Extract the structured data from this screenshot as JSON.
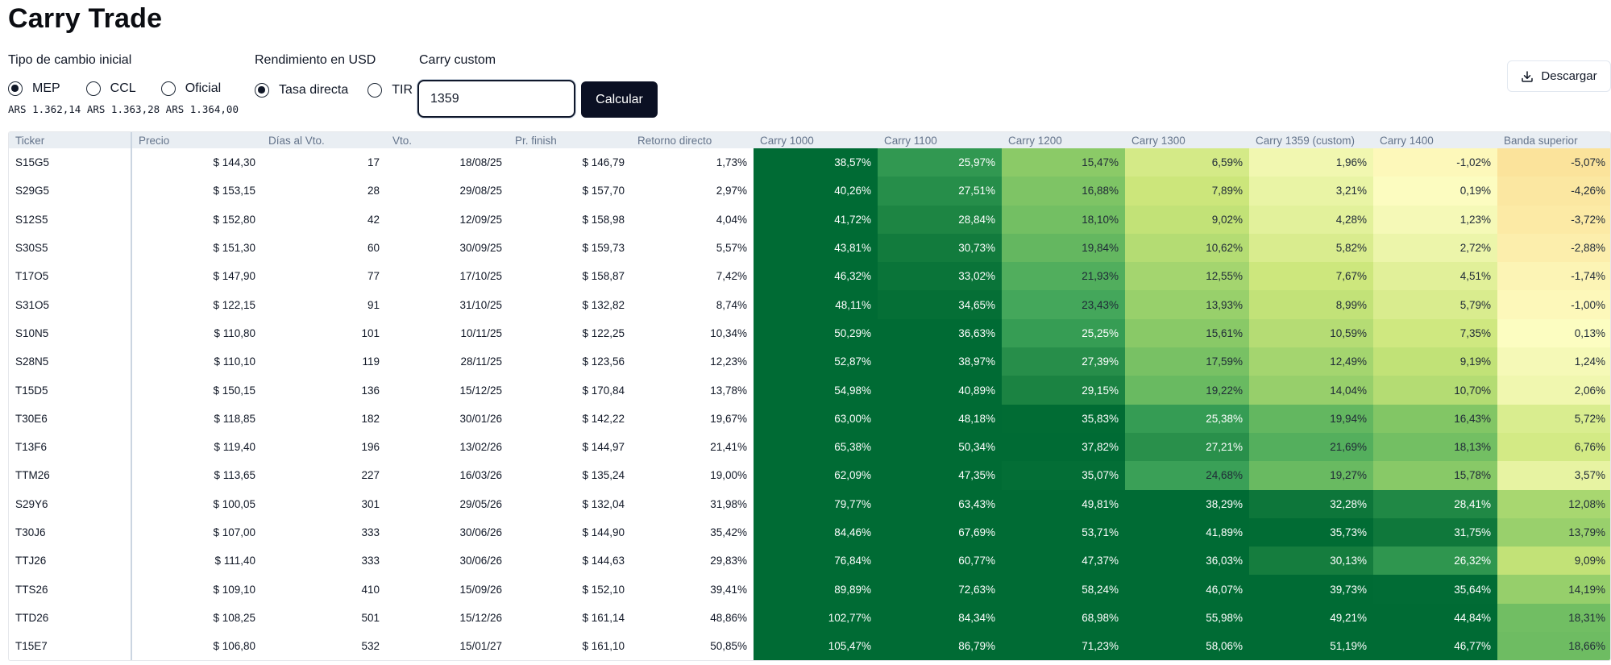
{
  "title": "Carry Trade",
  "fx": {
    "label": "Tipo de cambio inicial",
    "options": [
      "MEP",
      "CCL",
      "Oficial"
    ],
    "selected": 0,
    "rates_text": "ARS 1.362,14 ARS 1.363,28 ARS 1.364,00"
  },
  "yield": {
    "label": "Rendimiento en USD",
    "options": [
      "Tasa directa",
      "TIR"
    ],
    "selected": 0
  },
  "carry": {
    "label": "Carry custom",
    "value": "1359",
    "button_label": "Calcular"
  },
  "download_label": "Descargar",
  "colors": {
    "scale_low": "#fbe79b",
    "scale_mid": "#cbe67a",
    "scale_high": "#006b34",
    "button_dark": "#0b1023"
  },
  "table": {
    "headers": [
      "Ticker",
      "Precio",
      "Días al Vto.",
      "Vto.",
      "Pr. finish",
      "Retorno directo",
      "Carry 1000",
      "Carry 1100",
      "Carry 1200",
      "Carry 1300",
      "Carry 1359 (custom)",
      "Carry 1400",
      "Banda superior"
    ],
    "rows": [
      [
        "S15G5",
        "$ 144,30",
        "17",
        "18/08/25",
        "$ 146,79",
        "1,73%",
        "38,57%",
        "25,97%",
        "15,47%",
        "6,59%",
        "1,96%",
        "-1,02%",
        "-5,07%"
      ],
      [
        "S29G5",
        "$ 153,15",
        "28",
        "29/08/25",
        "$ 157,70",
        "2,97%",
        "40,26%",
        "27,51%",
        "16,88%",
        "7,89%",
        "3,21%",
        "0,19%",
        "-4,26%"
      ],
      [
        "S12S5",
        "$ 152,80",
        "42",
        "12/09/25",
        "$ 158,98",
        "4,04%",
        "41,72%",
        "28,84%",
        "18,10%",
        "9,02%",
        "4,28%",
        "1,23%",
        "-3,72%"
      ],
      [
        "S30S5",
        "$ 151,30",
        "60",
        "30/09/25",
        "$ 159,73",
        "5,57%",
        "43,81%",
        "30,73%",
        "19,84%",
        "10,62%",
        "5,82%",
        "2,72%",
        "-2,88%"
      ],
      [
        "T17O5",
        "$ 147,90",
        "77",
        "17/10/25",
        "$ 158,87",
        "7,42%",
        "46,32%",
        "33,02%",
        "21,93%",
        "12,55%",
        "7,67%",
        "4,51%",
        "-1,74%"
      ],
      [
        "S31O5",
        "$ 122,15",
        "91",
        "31/10/25",
        "$ 132,82",
        "8,74%",
        "48,11%",
        "34,65%",
        "23,43%",
        "13,93%",
        "8,99%",
        "5,79%",
        "-1,00%"
      ],
      [
        "S10N5",
        "$ 110,80",
        "101",
        "10/11/25",
        "$ 122,25",
        "10,34%",
        "50,29%",
        "36,63%",
        "25,25%",
        "15,61%",
        "10,59%",
        "7,35%",
        "0,13%"
      ],
      [
        "S28N5",
        "$ 110,10",
        "119",
        "28/11/25",
        "$ 123,56",
        "12,23%",
        "52,87%",
        "38,97%",
        "27,39%",
        "17,59%",
        "12,49%",
        "9,19%",
        "1,24%"
      ],
      [
        "T15D5",
        "$ 150,15",
        "136",
        "15/12/25",
        "$ 170,84",
        "13,78%",
        "54,98%",
        "40,89%",
        "29,15%",
        "19,22%",
        "14,04%",
        "10,70%",
        "2,06%"
      ],
      [
        "T30E6",
        "$ 118,85",
        "182",
        "30/01/26",
        "$ 142,22",
        "19,67%",
        "63,00%",
        "48,18%",
        "35,83%",
        "25,38%",
        "19,94%",
        "16,43%",
        "5,72%"
      ],
      [
        "T13F6",
        "$ 119,40",
        "196",
        "13/02/26",
        "$ 144,97",
        "21,41%",
        "65,38%",
        "50,34%",
        "37,82%",
        "27,21%",
        "21,69%",
        "18,13%",
        "6,76%"
      ],
      [
        "TTM26",
        "$ 113,65",
        "227",
        "16/03/26",
        "$ 135,24",
        "19,00%",
        "62,09%",
        "47,35%",
        "35,07%",
        "24,68%",
        "19,27%",
        "15,78%",
        "3,57%"
      ],
      [
        "S29Y6",
        "$ 100,05",
        "301",
        "29/05/26",
        "$ 132,04",
        "31,98%",
        "79,77%",
        "63,43%",
        "49,81%",
        "38,29%",
        "32,28%",
        "28,41%",
        "12,08%"
      ],
      [
        "T30J6",
        "$ 107,00",
        "333",
        "30/06/26",
        "$ 144,90",
        "35,42%",
        "84,46%",
        "67,69%",
        "53,71%",
        "41,89%",
        "35,73%",
        "31,75%",
        "13,79%"
      ],
      [
        "TTJ26",
        "$ 111,40",
        "333",
        "30/06/26",
        "$ 144,63",
        "29,83%",
        "76,84%",
        "60,77%",
        "47,37%",
        "36,03%",
        "30,13%",
        "26,32%",
        "9,09%"
      ],
      [
        "TTS26",
        "$ 109,10",
        "410",
        "15/09/26",
        "$ 152,10",
        "39,41%",
        "89,89%",
        "72,63%",
        "58,24%",
        "46,07%",
        "39,73%",
        "35,64%",
        "14,19%"
      ],
      [
        "TTD26",
        "$ 108,25",
        "501",
        "15/12/26",
        "$ 161,14",
        "48,86%",
        "102,77%",
        "84,34%",
        "68,98%",
        "55,98%",
        "49,21%",
        "44,84%",
        "18,31%"
      ],
      [
        "T15E7",
        "$ 106,80",
        "532",
        "15/01/27",
        "$ 161,10",
        "50,85%",
        "105,47%",
        "86,79%",
        "71,23%",
        "58,06%",
        "51,19%",
        "46,77%",
        "18,66%"
      ]
    ]
  }
}
